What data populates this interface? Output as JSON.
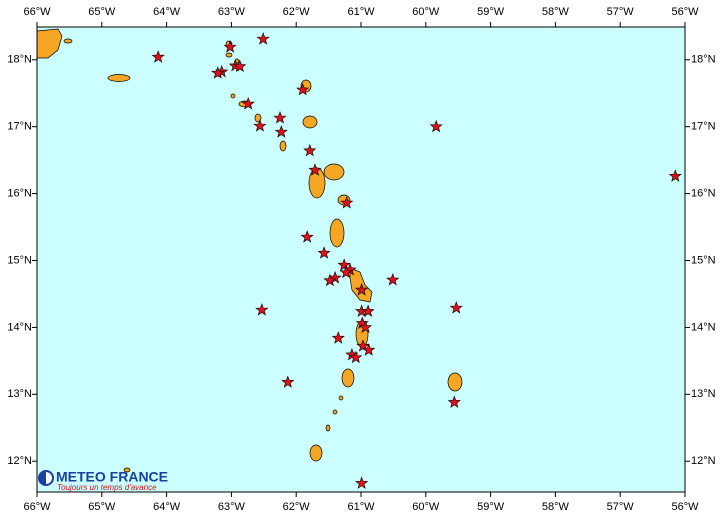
{
  "map": {
    "lonlim": [
      -66,
      -56
    ],
    "latlim": [
      11.54,
      18.49
    ],
    "xticks": [
      {
        "value": -66,
        "label": "66°W"
      },
      {
        "value": -65,
        "label": "65°W"
      },
      {
        "value": -64,
        "label": "64°W"
      },
      {
        "value": -63,
        "label": "63°W"
      },
      {
        "value": -62,
        "label": "62°W"
      },
      {
        "value": -61,
        "label": "61°W"
      },
      {
        "value": -60,
        "label": "60°W"
      },
      {
        "value": -59,
        "label": "59°W"
      },
      {
        "value": -58,
        "label": "58°W"
      },
      {
        "value": -57,
        "label": "57°W"
      },
      {
        "value": -56,
        "label": "56°W"
      }
    ],
    "yticks": [
      {
        "value": 12,
        "label": "12°N"
      },
      {
        "value": 13,
        "label": "13°N"
      },
      {
        "value": 14,
        "label": "14°N"
      },
      {
        "value": 15,
        "label": "15°N"
      },
      {
        "value": 16,
        "label": "16°N"
      },
      {
        "value": 17,
        "label": "17°N"
      },
      {
        "value": 18,
        "label": "18°N"
      }
    ],
    "markers": [
      {
        "lon": -64.13,
        "lat": 18.04
      },
      {
        "lon": -62.51,
        "lat": 18.31
      },
      {
        "lon": -63.02,
        "lat": 18.19
      },
      {
        "lon": -63.15,
        "lat": 17.82
      },
      {
        "lon": -63.21,
        "lat": 17.8
      },
      {
        "lon": -62.94,
        "lat": 17.91
      },
      {
        "lon": -62.87,
        "lat": 17.9
      },
      {
        "lon": -62.74,
        "lat": 17.34
      },
      {
        "lon": -62.25,
        "lat": 17.13
      },
      {
        "lon": -62.56,
        "lat": 17.01
      },
      {
        "lon": -62.23,
        "lat": 16.92
      },
      {
        "lon": -61.9,
        "lat": 17.55
      },
      {
        "lon": -59.84,
        "lat": 17.0
      },
      {
        "lon": -56.15,
        "lat": 16.26
      },
      {
        "lon": -61.79,
        "lat": 16.64
      },
      {
        "lon": -61.71,
        "lat": 16.35
      },
      {
        "lon": -61.22,
        "lat": 15.86
      },
      {
        "lon": -61.83,
        "lat": 15.35
      },
      {
        "lon": -61.57,
        "lat": 15.11
      },
      {
        "lon": -61.26,
        "lat": 14.93
      },
      {
        "lon": -61.17,
        "lat": 14.86
      },
      {
        "lon": -61.23,
        "lat": 14.82
      },
      {
        "lon": -61.4,
        "lat": 14.74
      },
      {
        "lon": -61.48,
        "lat": 14.7
      },
      {
        "lon": -60.99,
        "lat": 14.56
      },
      {
        "lon": -60.51,
        "lat": 14.71
      },
      {
        "lon": -62.53,
        "lat": 14.26
      },
      {
        "lon": -59.53,
        "lat": 14.29
      },
      {
        "lon": -60.99,
        "lat": 14.24
      },
      {
        "lon": -60.89,
        "lat": 14.24
      },
      {
        "lon": -60.98,
        "lat": 14.06
      },
      {
        "lon": -60.93,
        "lat": 14.0
      },
      {
        "lon": -61.35,
        "lat": 13.84
      },
      {
        "lon": -60.97,
        "lat": 13.72
      },
      {
        "lon": -60.88,
        "lat": 13.66
      },
      {
        "lon": -61.14,
        "lat": 13.59
      },
      {
        "lon": -61.08,
        "lat": 13.55
      },
      {
        "lon": -62.13,
        "lat": 13.18
      },
      {
        "lon": -59.56,
        "lat": 12.88
      },
      {
        "lon": -60.99,
        "lat": 11.67
      }
    ]
  },
  "logo": {
    "title": "METEO FRANCE",
    "subtitle": "Toujours un temps d'avance"
  }
}
